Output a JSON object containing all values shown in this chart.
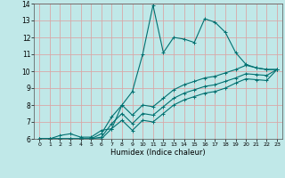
{
  "xlabel": "Humidex (Indice chaleur)",
  "xlim": [
    -0.5,
    23.5
  ],
  "ylim": [
    6,
    14
  ],
  "yticks": [
    6,
    7,
    8,
    9,
    10,
    11,
    12,
    13,
    14
  ],
  "xticks": [
    0,
    1,
    2,
    3,
    4,
    5,
    6,
    7,
    8,
    9,
    10,
    11,
    12,
    13,
    14,
    15,
    16,
    17,
    18,
    19,
    20,
    21,
    22,
    23
  ],
  "bg_color": "#c0e8e8",
  "grid_color": "#d8a8a8",
  "line_color": "#007070",
  "lines": [
    {
      "x": [
        0,
        1,
        2,
        3,
        4,
        5,
        6,
        7,
        8,
        9,
        10,
        11,
        12,
        13,
        14,
        15,
        16,
        17,
        18,
        19,
        20,
        21,
        22,
        23
      ],
      "y": [
        6,
        6,
        6.2,
        6.3,
        6.1,
        6.1,
        6.5,
        6.6,
        8.0,
        8.8,
        11.0,
        13.9,
        11.1,
        12.0,
        11.9,
        11.7,
        13.1,
        12.9,
        12.3,
        11.1,
        10.4,
        10.2,
        10.1,
        10.1
      ]
    },
    {
      "x": [
        0,
        1,
        2,
        3,
        4,
        5,
        6,
        7,
        8,
        9,
        10,
        11,
        12,
        13,
        14,
        15,
        16,
        17,
        18,
        19,
        20,
        21,
        22,
        23
      ],
      "y": [
        6,
        6,
        6,
        6,
        6,
        6,
        6.3,
        7.3,
        8.0,
        7.4,
        8.0,
        7.9,
        8.4,
        8.9,
        9.2,
        9.4,
        9.6,
        9.7,
        9.9,
        10.1,
        10.35,
        10.2,
        10.1,
        10.1
      ]
    },
    {
      "x": [
        0,
        1,
        2,
        3,
        4,
        5,
        6,
        7,
        8,
        9,
        10,
        11,
        12,
        13,
        14,
        15,
        16,
        17,
        18,
        19,
        20,
        21,
        22,
        23
      ],
      "y": [
        6,
        6,
        6,
        6,
        6,
        6,
        6.1,
        6.9,
        7.5,
        6.9,
        7.5,
        7.4,
        7.9,
        8.4,
        8.7,
        8.9,
        9.1,
        9.2,
        9.4,
        9.6,
        9.85,
        9.8,
        9.75,
        10.1
      ]
    },
    {
      "x": [
        0,
        1,
        2,
        3,
        4,
        5,
        6,
        7,
        8,
        9,
        10,
        11,
        12,
        13,
        14,
        15,
        16,
        17,
        18,
        19,
        20,
        21,
        22,
        23
      ],
      "y": [
        6,
        6,
        6,
        6,
        6,
        6,
        6.0,
        6.6,
        7.1,
        6.5,
        7.1,
        7.0,
        7.5,
        8.0,
        8.3,
        8.5,
        8.7,
        8.8,
        9.0,
        9.3,
        9.55,
        9.5,
        9.45,
        10.1
      ]
    }
  ]
}
